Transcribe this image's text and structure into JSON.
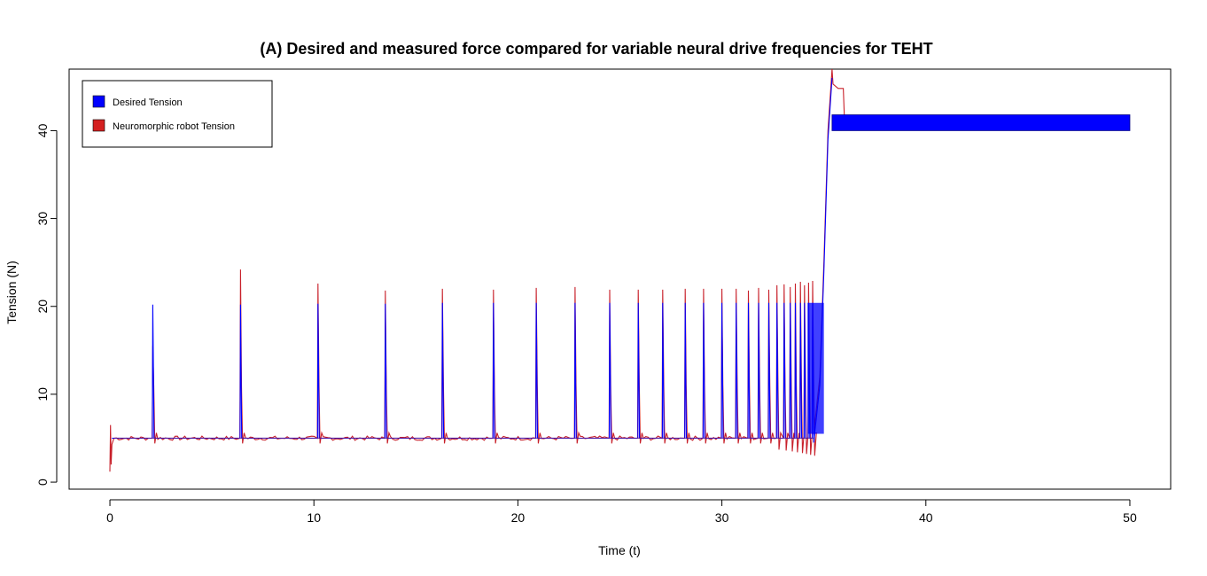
{
  "chart_data": {
    "type": "line",
    "title": "(A)   Desired and  measured force compared for  variable  neural drive  frequencies for  TEHT",
    "xlabel": "Time (t)",
    "ylabel": "Tension (N)",
    "xlim": [
      -2,
      52
    ],
    "ylim": [
      -0.8,
      47
    ],
    "xticks": [
      0,
      10,
      20,
      30,
      40,
      50
    ],
    "yticks": [
      0,
      10,
      20,
      30,
      40
    ],
    "grid": false,
    "legend_position": "top-left",
    "baseline": 5,
    "pulses": [
      {
        "x": 2.1,
        "desired": 20.2,
        "measured": 15.5
      },
      {
        "x": 6.4,
        "desired": 20.2,
        "measured": 24.2
      },
      {
        "x": 10.2,
        "desired": 20.3,
        "measured": 22.6
      },
      {
        "x": 13.5,
        "desired": 20.3,
        "measured": 21.8
      },
      {
        "x": 16.3,
        "desired": 20.4,
        "measured": 22.0
      },
      {
        "x": 18.8,
        "desired": 20.4,
        "measured": 21.9
      },
      {
        "x": 20.9,
        "desired": 20.4,
        "measured": 22.1
      },
      {
        "x": 22.8,
        "desired": 20.4,
        "measured": 22.2
      },
      {
        "x": 24.5,
        "desired": 20.4,
        "measured": 21.9
      },
      {
        "x": 25.9,
        "desired": 20.4,
        "measured": 21.9
      },
      {
        "x": 27.1,
        "desired": 20.4,
        "measured": 21.9
      },
      {
        "x": 28.2,
        "desired": 20.4,
        "measured": 22.0
      },
      {
        "x": 29.1,
        "desired": 20.4,
        "measured": 22.0
      },
      {
        "x": 30.0,
        "desired": 20.4,
        "measured": 22.0
      },
      {
        "x": 30.7,
        "desired": 20.4,
        "measured": 22.0
      },
      {
        "x": 31.3,
        "desired": 20.4,
        "measured": 21.8
      },
      {
        "x": 31.8,
        "desired": 20.4,
        "measured": 22.1
      },
      {
        "x": 32.3,
        "desired": 20.4,
        "measured": 21.9
      },
      {
        "x": 32.7,
        "desired": 20.4,
        "measured": 22.4
      },
      {
        "x": 33.05,
        "desired": 20.4,
        "measured": 22.5
      },
      {
        "x": 33.35,
        "desired": 20.4,
        "measured": 22.2
      },
      {
        "x": 33.6,
        "desired": 20.4,
        "measured": 22.6
      },
      {
        "x": 33.85,
        "desired": 20.4,
        "measured": 22.8
      },
      {
        "x": 34.05,
        "desired": 20.4,
        "measured": 22.4
      },
      {
        "x": 34.25,
        "desired": 20.4,
        "measured": 22.7
      },
      {
        "x": 34.45,
        "desired": 20.4,
        "measured": 22.9
      }
    ],
    "ramp": {
      "x": [
        34.5,
        34.8,
        35.0,
        35.2,
        35.4
      ],
      "y": [
        5.5,
        12,
        25,
        40,
        47
      ]
    },
    "plateau": {
      "x_start": 35.4,
      "x_end": 50.0,
      "desired_min": 40.0,
      "desired_max": 41.8,
      "measured_level": 44.8,
      "measured_end": 36.0
    },
    "series": [
      {
        "name": "Desired Tension",
        "color": "#0000ff"
      },
      {
        "name": "Neuromorphic robot Tension",
        "color": "#ff0000"
      }
    ]
  }
}
